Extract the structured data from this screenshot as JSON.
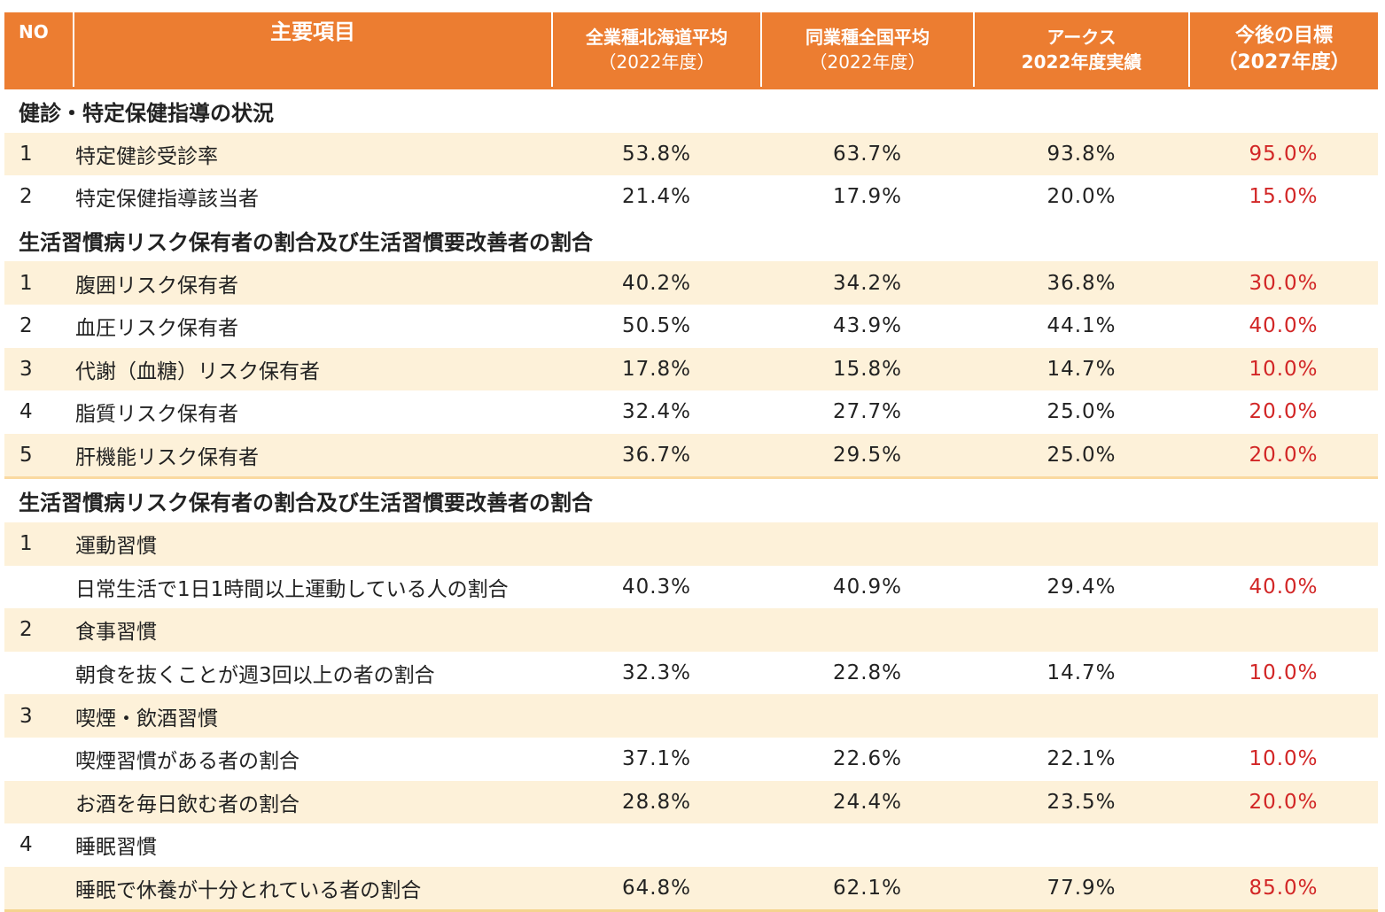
{
  "header": {
    "no": "NO",
    "item": "主要項目",
    "hokkaido_line1": "全業種北海道平均",
    "hokkaido_line2": "（2022年度）",
    "national_line1": "同業種全国平均",
    "national_line2": "（2022年度）",
    "arcs_line1": "アークス",
    "arcs_line2": "2022年度実績",
    "goal_line1": "今後の目標",
    "goal_line2": "（2027年度）"
  },
  "sections": [
    {
      "title": "健診・特定保健指導の状況",
      "rows": [
        {
          "no": "1",
          "item": "特定健診受診率",
          "hokkaido": "53.8%",
          "national": "63.7%",
          "arcs": "93.8%",
          "goal": "95.0%"
        },
        {
          "no": "2",
          "item": "特定保健指導該当者",
          "hokkaido": "21.4%",
          "national": "17.9%",
          "arcs": "20.0%",
          "goal": "15.0%"
        }
      ]
    },
    {
      "title": "生活習慣病リスク保有者の割合及び生活習慣要改善者の割合",
      "rows": [
        {
          "no": "1",
          "item": "腹囲リスク保有者",
          "hokkaido": "40.2%",
          "national": "34.2%",
          "arcs": "36.8%",
          "goal": "30.0%"
        },
        {
          "no": "2",
          "item": "血圧リスク保有者",
          "hokkaido": "50.5%",
          "national": "43.9%",
          "arcs": "44.1%",
          "goal": "40.0%"
        },
        {
          "no": "3",
          "item": "代謝（血糖）リスク保有者",
          "hokkaido": "17.8%",
          "national": "15.8%",
          "arcs": "14.7%",
          "goal": "10.0%"
        },
        {
          "no": "4",
          "item": "脂質リスク保有者",
          "hokkaido": "32.4%",
          "national": "27.7%",
          "arcs": "25.0%",
          "goal": "20.0%"
        },
        {
          "no": "5",
          "item": "肝機能リスク保有者",
          "hokkaido": "36.7%",
          "national": "29.5%",
          "arcs": "25.0%",
          "goal": "20.0%"
        }
      ]
    },
    {
      "title": "生活習慣病リスク保有者の割合及び生活習慣要改善者の割合",
      "rows": [
        {
          "no": "1",
          "item": "運動習慣",
          "hokkaido": "",
          "national": "",
          "arcs": "",
          "goal": ""
        },
        {
          "no": "",
          "item": "日常生活で1日1時間以上運動している人の割合",
          "hokkaido": "40.3%",
          "national": "40.9%",
          "arcs": "29.4%",
          "goal": "40.0%"
        },
        {
          "no": "2",
          "item": "食事習慣",
          "hokkaido": "",
          "national": "",
          "arcs": "",
          "goal": ""
        },
        {
          "no": "",
          "item": "朝食を抜くことが週3回以上の者の割合",
          "hokkaido": "32.3%",
          "national": "22.8%",
          "arcs": "14.7%",
          "goal": "10.0%"
        },
        {
          "no": "3",
          "item": "喫煙・飲酒習慣",
          "hokkaido": "",
          "national": "",
          "arcs": "",
          "goal": ""
        },
        {
          "no": "",
          "item": "喫煙習慣がある者の割合",
          "hokkaido": "37.1%",
          "national": "22.6%",
          "arcs": "22.1%",
          "goal": "10.0%"
        },
        {
          "no": "",
          "item": "お酒を毎日飲む者の割合",
          "hokkaido": "28.8%",
          "national": "24.4%",
          "arcs": "23.5%",
          "goal": "20.0%"
        },
        {
          "no": "4",
          "item": "睡眠習慣",
          "hokkaido": "",
          "national": "",
          "arcs": "",
          "goal": ""
        },
        {
          "no": "",
          "item": "睡眠で休養が十分とれている者の割合",
          "hokkaido": "64.8%",
          "national": "62.1%",
          "arcs": "77.9%",
          "goal": "85.0%"
        }
      ]
    }
  ],
  "colors": {
    "header_bg": "#ec7d31",
    "header_text": "#ffffff",
    "stripe": "#fdf1d9",
    "goal_text": "#d22626"
  }
}
